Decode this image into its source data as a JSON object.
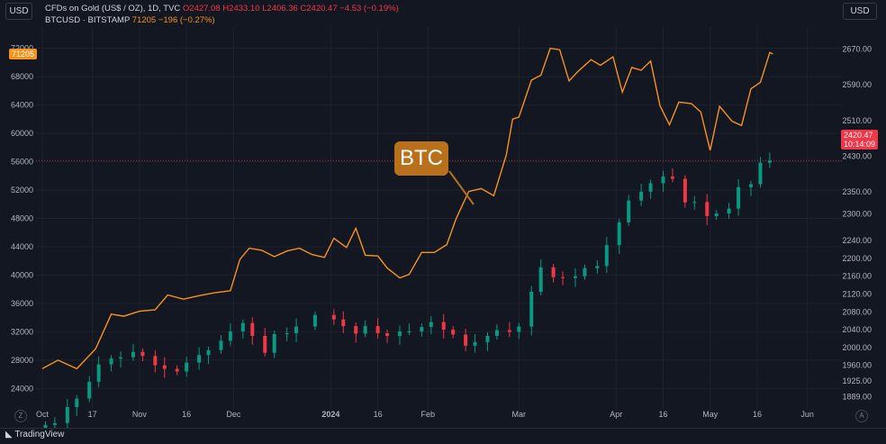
{
  "legend": {
    "gold_line": "CFDs on Gold (US$ / OZ), 1D, TVC",
    "gold_o": "O2427.08",
    "gold_h": "H2433.10",
    "gold_l": "L2406.36",
    "gold_c": "C2420.47",
    "gold_chg": "−4.53 (−0.19%)",
    "btc_name": "BTCUSD · BITSTAMP",
    "btc_last": "71205",
    "btc_chg": "−196 (−0.27%)"
  },
  "buttons": {
    "left_currency": "USD",
    "right_currency": "USD"
  },
  "price_tags": {
    "btc": "71205",
    "gold": "2420.47",
    "countdown": "10:14:09"
  },
  "callout": "BTC",
  "footer": {
    "brand": "TradingView",
    "left_circle": "Z",
    "right_circle": "A"
  },
  "colors": {
    "background": "#131722",
    "btc": "#f7931a",
    "up": "#089981",
    "down": "#f23645",
    "callout": "#b8701a"
  },
  "chart_data": [
    {
      "type": "line",
      "series": [
        {
          "name": "BTCUSD · BITSTAMP",
          "x": [
            "2023-10-01",
            "2023-10-06",
            "2023-10-12",
            "2023-10-18",
            "2023-10-23",
            "2023-10-27",
            "2023-11-01",
            "2023-11-06",
            "2023-11-10",
            "2023-11-15",
            "2023-11-20",
            "2023-11-25",
            "2023-11-30",
            "2023-12-03",
            "2023-12-06",
            "2023-12-10",
            "2023-12-14",
            "2023-12-18",
            "2023-12-22",
            "2023-12-26",
            "2023-12-30",
            "2024-01-02",
            "2024-01-06",
            "2024-01-09",
            "2024-01-12",
            "2024-01-16",
            "2024-01-19",
            "2024-01-23",
            "2024-01-26",
            "2024-01-30",
            "2024-02-03",
            "2024-02-07",
            "2024-02-10",
            "2024-02-14",
            "2024-02-18",
            "2024-02-22",
            "2024-02-26",
            "2024-02-28",
            "2024-03-01",
            "2024-03-05",
            "2024-03-08",
            "2024-03-11",
            "2024-03-14",
            "2024-03-17",
            "2024-03-20",
            "2024-03-24",
            "2024-03-27",
            "2024-03-31",
            "2024-04-03",
            "2024-04-06",
            "2024-04-09",
            "2024-04-12",
            "2024-04-15",
            "2024-04-18",
            "2024-04-21",
            "2024-04-25",
            "2024-04-28",
            "2024-05-01",
            "2024-05-04",
            "2024-05-08",
            "2024-05-11",
            "2024-05-14",
            "2024-05-17",
            "2024-05-20",
            "2024-05-21"
          ],
          "values": [
            26800,
            28000,
            26800,
            29600,
            34500,
            34200,
            34900,
            35100,
            37200,
            36600,
            37100,
            37500,
            37800,
            42200,
            43800,
            43500,
            42600,
            43400,
            43800,
            42900,
            42500,
            45200,
            43900,
            46600,
            42800,
            42700,
            41000,
            39600,
            40100,
            43200,
            43200,
            44300,
            48000,
            51800,
            52200,
            51200,
            57000,
            62000,
            62300,
            67500,
            68200,
            72000,
            71800,
            67400,
            68800,
            70400,
            69600,
            70800,
            65800,
            69300,
            68900,
            70200,
            63900,
            61200,
            64400,
            64200,
            63000,
            57600,
            63800,
            61700,
            61100,
            66300,
            67200,
            71400,
            71200
          ]
        }
      ],
      "ylabel": "",
      "ylim": [
        21000,
        75000
      ]
    },
    {
      "type": "candlestick",
      "series": [
        {
          "name": "CFDs on Gold (US$ / OZ), 1D, TVC",
          "x": [
            "2023-10-02",
            "2023-10-05",
            "2023-10-09",
            "2023-10-12",
            "2023-10-16",
            "2023-10-19",
            "2023-10-23",
            "2023-10-26",
            "2023-10-30",
            "2023-11-02",
            "2023-11-06",
            "2023-11-09",
            "2023-11-13",
            "2023-11-16",
            "2023-11-20",
            "2023-11-23",
            "2023-11-27",
            "2023-11-30",
            "2023-12-04",
            "2023-12-07",
            "2023-12-11",
            "2023-12-14",
            "2023-12-18",
            "2023-12-21",
            "2023-12-27",
            "2024-01-02",
            "2024-01-05",
            "2024-01-09",
            "2024-01-12",
            "2024-01-16",
            "2024-01-19",
            "2024-01-23",
            "2024-01-26",
            "2024-01-30",
            "2024-02-02",
            "2024-02-06",
            "2024-02-09",
            "2024-02-13",
            "2024-02-16",
            "2024-02-20",
            "2024-02-23",
            "2024-02-27",
            "2024-03-01",
            "2024-03-05",
            "2024-03-08",
            "2024-03-12",
            "2024-03-15",
            "2024-03-19",
            "2024-03-22",
            "2024-03-26",
            "2024-03-29",
            "2024-04-02",
            "2024-04-05",
            "2024-04-09",
            "2024-04-12",
            "2024-04-16",
            "2024-04-19",
            "2024-04-23",
            "2024-04-26",
            "2024-04-30",
            "2024-05-03",
            "2024-05-07",
            "2024-05-10",
            "2024-05-14",
            "2024-05-17",
            "2024-05-20"
          ],
          "values": [
            1826,
            1830,
            1866,
            1885,
            1923,
            1962,
            1975,
            1978,
            1990,
            1981,
            1960,
            1952,
            1946,
            1966,
            1983,
            1994,
            2015,
            2036,
            2055,
            2026,
            1988,
            2030,
            2032,
            2047,
            2073,
            2063,
            2048,
            2031,
            2048,
            2032,
            2026,
            2036,
            2036,
            2046,
            2057,
            2040,
            2029,
            2004,
            2012,
            2026,
            2039,
            2035,
            2047,
            2125,
            2180,
            2158,
            2156,
            2160,
            2178,
            2183,
            2230,
            2281,
            2330,
            2350,
            2369,
            2384,
            2379,
            2326,
            2327,
            2295,
            2301,
            2312,
            2360,
            2367,
            2415,
            2420
          ],
          "low": 1810,
          "high": 2450
        }
      ],
      "ylim": [
        1860,
        2720
      ]
    }
  ]
}
